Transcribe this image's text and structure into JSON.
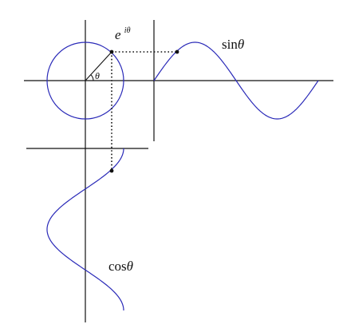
{
  "labels": {
    "exp_base": "e",
    "exp_power": "iθ",
    "theta": "θ",
    "sin_func": "sin",
    "sin_var": "θ",
    "cos_func": "cos",
    "cos_var": "θ"
  },
  "colors": {
    "curve": "#2a2ab8",
    "axis": "#111111",
    "dots": "#111111",
    "background": "#ffffff"
  }
}
